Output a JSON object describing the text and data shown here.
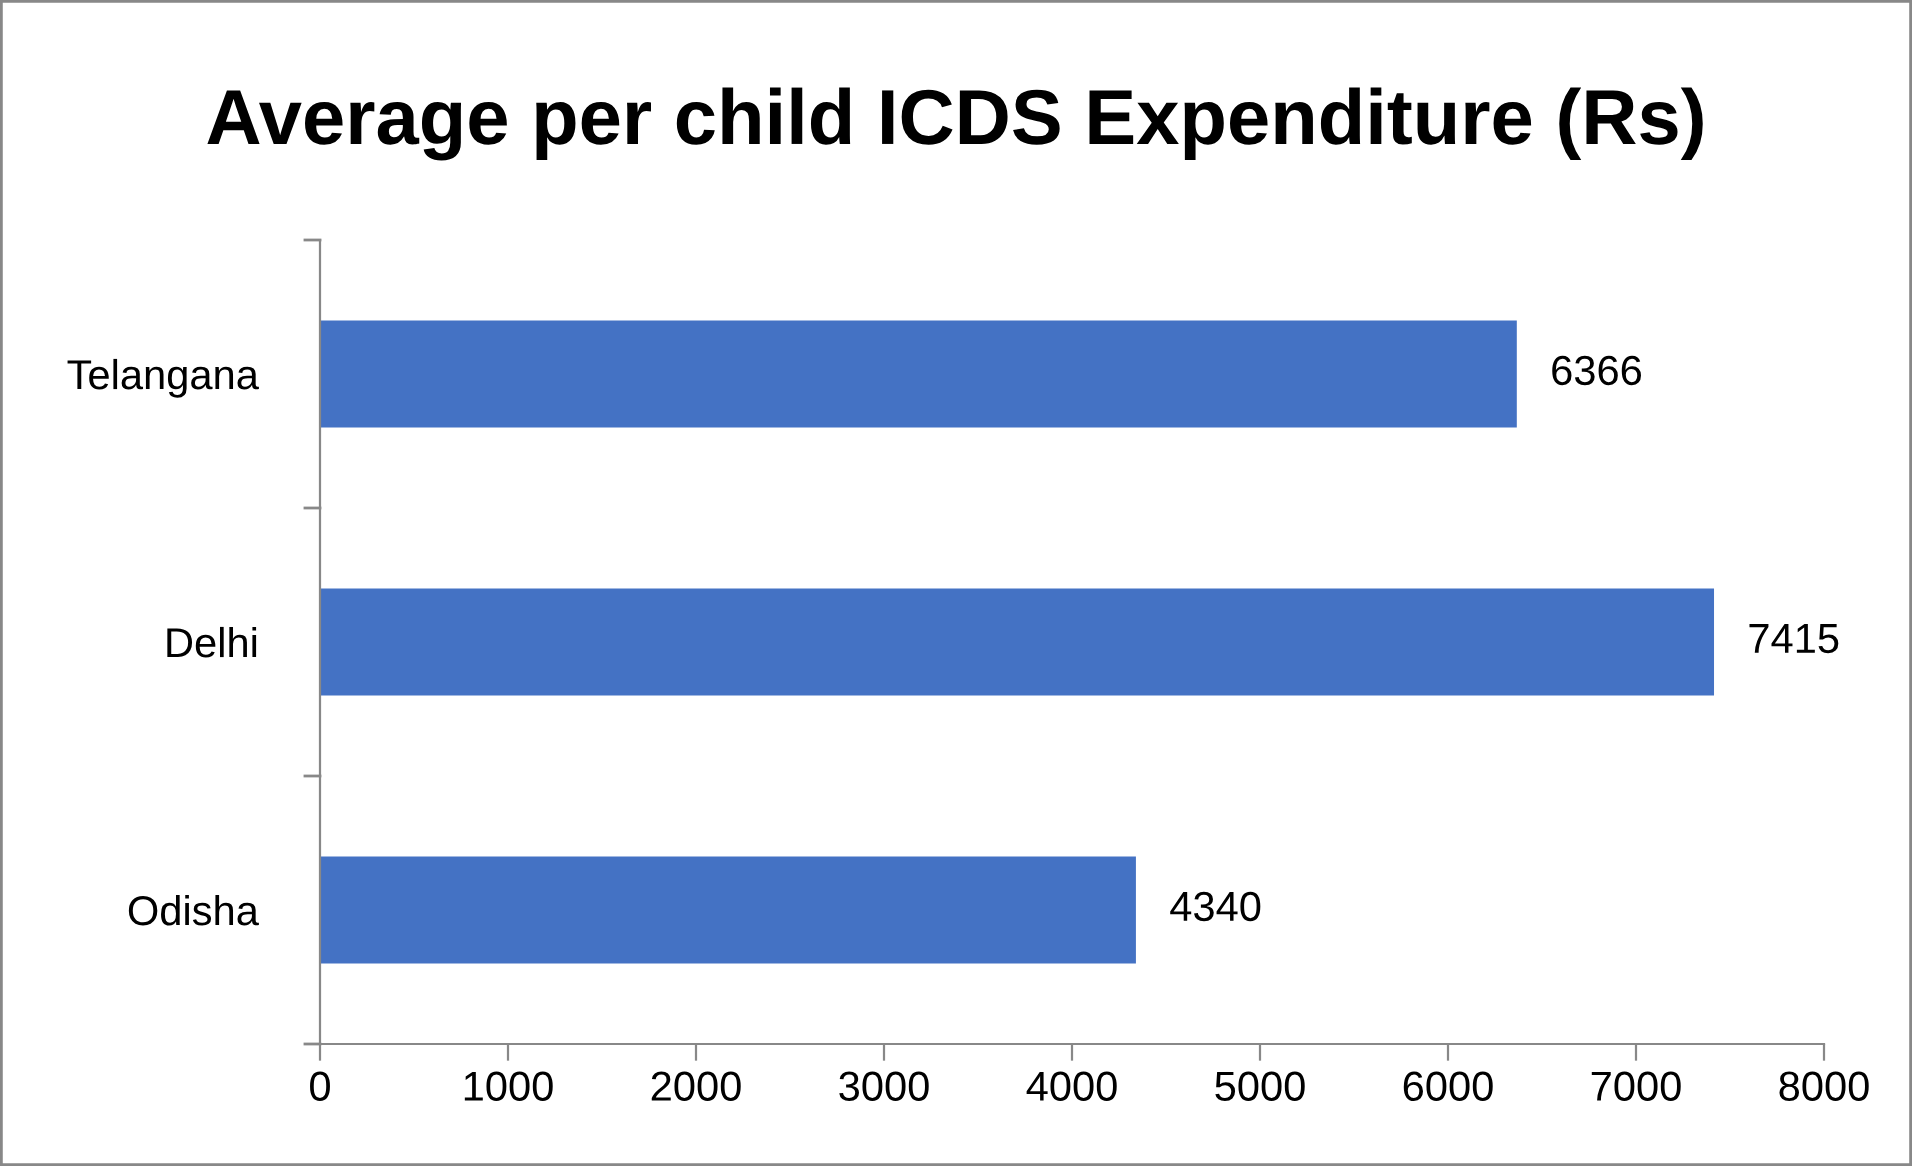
{
  "chart_data": {
    "type": "bar",
    "orientation": "horizontal",
    "title": "Average per child ICDS Expenditure (Rs)",
    "categories": [
      "Telangana",
      "Delhi",
      "Odisha"
    ],
    "values": [
      6366,
      7415,
      4340
    ],
    "color": "#4472c4",
    "xlim": [
      0,
      8000
    ],
    "xticks": [
      0,
      1000,
      2000,
      3000,
      4000,
      5000,
      6000,
      7000,
      8000
    ],
    "data_labels": true,
    "grid": false,
    "legend": false
  }
}
